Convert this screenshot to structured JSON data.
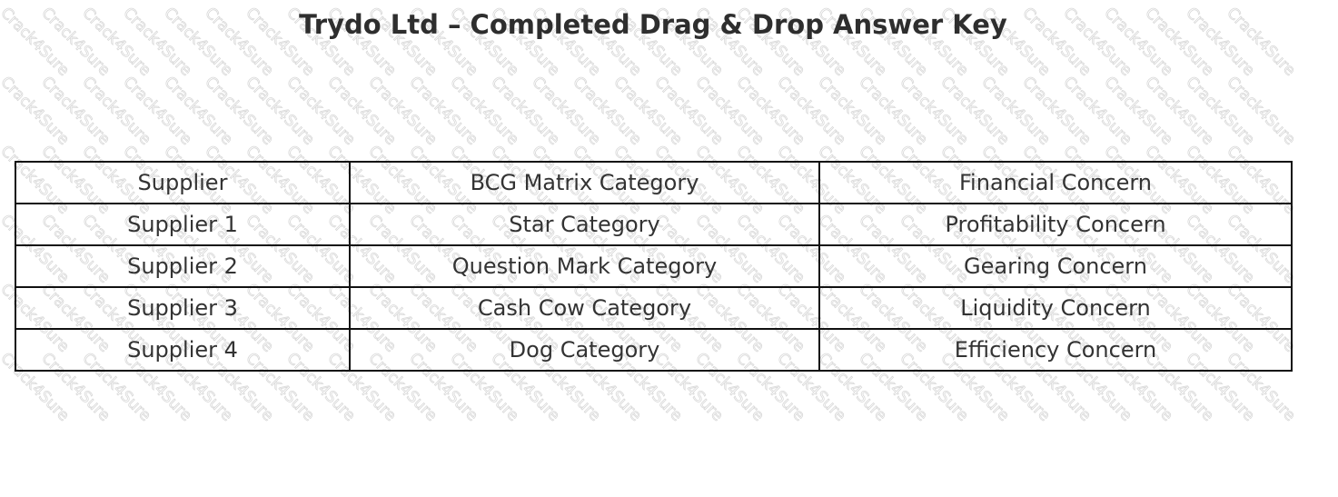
{
  "watermark": "Crack4Sure",
  "title": "Trydo Ltd – Completed Drag & Drop Answer Key",
  "table": {
    "headers": [
      "Supplier",
      "BCG Matrix Category",
      "Financial Concern"
    ],
    "rows": [
      [
        "Supplier 1",
        "Star Category",
        "Profitability Concern"
      ],
      [
        "Supplier 2",
        "Question Mark Category",
        "Gearing Concern"
      ],
      [
        "Supplier 3",
        "Cash Cow Category",
        "Liquidity Concern"
      ],
      [
        "Supplier 4",
        "Dog Category",
        "Efficiency Concern"
      ]
    ]
  }
}
